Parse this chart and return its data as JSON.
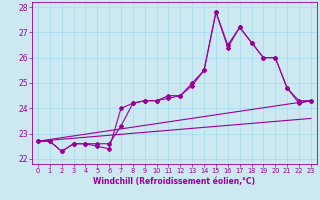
{
  "xlabel": "Windchill (Refroidissement éolien,°C)",
  "background_color": "#cce8f0",
  "grid_color": "#aaddee",
  "line_color": "#990099",
  "xlim": [
    -0.5,
    23.5
  ],
  "ylim": [
    21.8,
    28.2
  ],
  "xticks": [
    0,
    1,
    2,
    3,
    4,
    5,
    6,
    7,
    8,
    9,
    10,
    11,
    12,
    13,
    14,
    15,
    16,
    17,
    18,
    19,
    20,
    21,
    22,
    23
  ],
  "yticks": [
    22,
    23,
    24,
    25,
    26,
    27,
    28
  ],
  "lines": [
    {
      "x": [
        0,
        1,
        2,
        3,
        4,
        5,
        6,
        7,
        8,
        9,
        10,
        11,
        12,
        13,
        14,
        15,
        16,
        17,
        18,
        19,
        20,
        21,
        22,
        23
      ],
      "y": [
        22.7,
        22.7,
        22.3,
        22.6,
        22.6,
        22.6,
        22.6,
        23.3,
        24.2,
        24.3,
        24.3,
        24.5,
        24.5,
        25.0,
        25.5,
        27.8,
        26.5,
        27.2,
        26.6,
        26.0,
        26.0,
        24.8,
        24.3,
        24.3
      ],
      "has_markers": true
    },
    {
      "x": [
        0,
        1,
        2,
        3,
        4,
        5,
        6,
        7,
        8,
        9,
        10,
        11,
        12,
        13,
        14,
        15,
        16,
        17,
        18,
        19,
        20,
        21,
        22,
        23
      ],
      "y": [
        22.7,
        22.7,
        22.3,
        22.6,
        22.6,
        22.5,
        22.4,
        24.0,
        24.2,
        24.3,
        24.3,
        24.4,
        24.5,
        24.9,
        25.5,
        27.8,
        26.4,
        27.2,
        26.6,
        26.0,
        26.0,
        24.8,
        24.2,
        24.3
      ],
      "has_markers": true
    },
    {
      "x": [
        0,
        23
      ],
      "y": [
        22.7,
        24.3
      ],
      "has_markers": false
    },
    {
      "x": [
        0,
        23
      ],
      "y": [
        22.7,
        23.6
      ],
      "has_markers": false
    }
  ]
}
